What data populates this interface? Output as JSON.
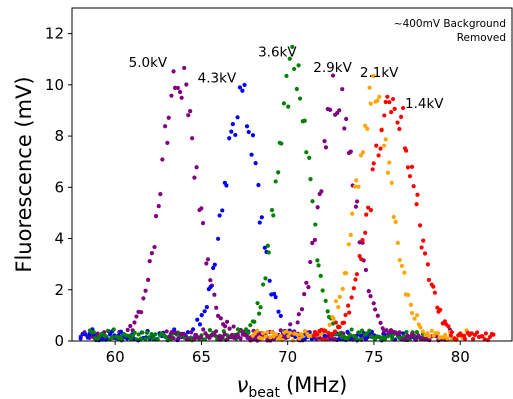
{
  "chart_data": {
    "type": "scatter",
    "title": "",
    "xlabel": "ν",
    "xlabel_sub": "beat",
    "xlabel_unit": "(MHz)",
    "ylabel": "Fluorescence (mV)",
    "xlim": [
      57.5,
      83
    ],
    "ylim": [
      0,
      13
    ],
    "xticks": [
      60,
      65,
      70,
      75,
      80
    ],
    "yticks": [
      0,
      2,
      4,
      6,
      8,
      10,
      12
    ],
    "grid": false,
    "annotation": [
      "~400mV Background",
      "Removed"
    ],
    "series": [
      {
        "label": "5.0kV",
        "label_at": [
          61.9,
          10.7
        ],
        "color": "#800080",
        "peak": [
          63.7,
          9.9
        ],
        "sigma": 1.05,
        "start": 58.0,
        "end": 75.0,
        "step": 0.125,
        "label_anchor": "middle"
      },
      {
        "label": "4.3kV",
        "label_at": [
          65.9,
          10.1
        ],
        "color": "#0000ff",
        "peak": [
          67.3,
          9.1
        ],
        "sigma": 1.0,
        "start": 58.0,
        "end": 78.0,
        "step": 0.13,
        "label_anchor": "middle"
      },
      {
        "label": "3.6kV",
        "label_at": [
          69.4,
          11.1
        ],
        "color": "#008000",
        "peak": [
          70.3,
          10.4
        ],
        "sigma": 0.95,
        "start": 58.5,
        "end": 78.0,
        "step": 0.12,
        "label_anchor": "middle"
      },
      {
        "label": "2.9kV",
        "label_at": [
          72.6,
          10.5
        ],
        "color": "#800080",
        "peak": [
          72.9,
          9.5
        ],
        "sigma": 1.0,
        "start": 63.0,
        "end": 79.5,
        "step": 0.13,
        "label_anchor": "middle"
      },
      {
        "label": "2.1kV",
        "label_at": [
          75.3,
          10.3
        ],
        "color": "#ffa500",
        "peak": [
          75.0,
          9.3
        ],
        "sigma": 1.05,
        "start": 68.0,
        "end": 80.5,
        "step": 0.12,
        "label_anchor": "middle"
      },
      {
        "label": "1.4kV",
        "label_at": [
          76.8,
          9.1
        ],
        "color": "#ff0000",
        "peak": [
          76.1,
          9.3
        ],
        "sigma": 1.25,
        "start": 71.5,
        "end": 82.0,
        "step": 0.11,
        "label_anchor": "start"
      }
    ]
  }
}
